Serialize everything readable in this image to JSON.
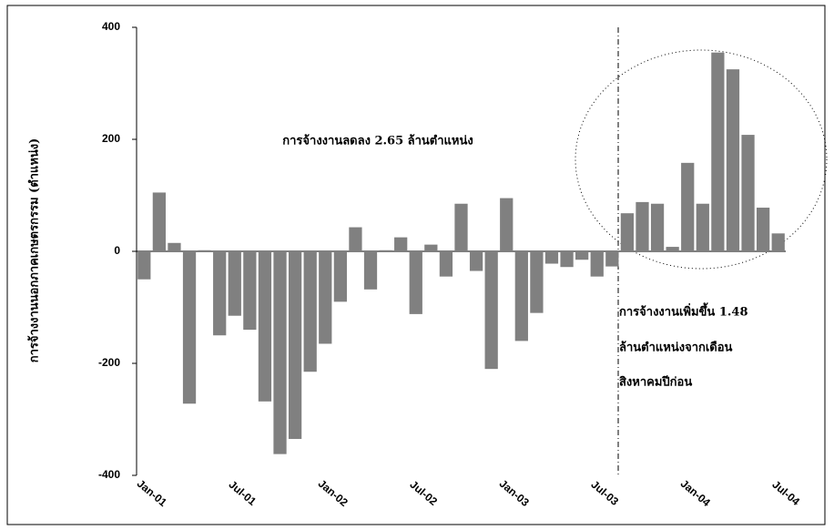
{
  "chart_data": {
    "type": "bar",
    "y_label": "การจ้างงานนอกภาคเกษตรกรรม (ตำแหน่ง)",
    "annotations": [
      "การจ้างงานลดลง 2.65 ล้านตำแหน่ง",
      "การจ้างงานเพิ่มขึ้น 1.48",
      "ล้านตำแหน่งจากเดือน",
      "สิงหาคมปีก่อน"
    ],
    "categories": [
      "Jan-01",
      null,
      null,
      null,
      null,
      null,
      "Jul-01",
      null,
      null,
      null,
      null,
      null,
      "Jan-02",
      null,
      null,
      null,
      null,
      null,
      "Jul-02",
      null,
      null,
      null,
      null,
      null,
      "Jan-03",
      null,
      null,
      null,
      null,
      null,
      "Jul-03",
      null,
      null,
      null,
      null,
      null,
      "Jan-04",
      null,
      null,
      null,
      null,
      null,
      "Jul-04"
    ],
    "values": [
      -50,
      105,
      15,
      -272,
      2,
      -150,
      -115,
      -140,
      -268,
      -362,
      -335,
      -215,
      -165,
      -90,
      43,
      -68,
      2,
      25,
      -112,
      12,
      -45,
      85,
      -35,
      -210,
      95,
      -160,
      -110,
      -22,
      -28,
      -15,
      -45,
      -27,
      68,
      88,
      85,
      8,
      158,
      85,
      355,
      325,
      208,
      78,
      32
    ],
    "color": "#808080",
    "ylim": [
      -400,
      400
    ],
    "yticks": [
      -400,
      -200,
      0,
      200,
      400
    ]
  }
}
